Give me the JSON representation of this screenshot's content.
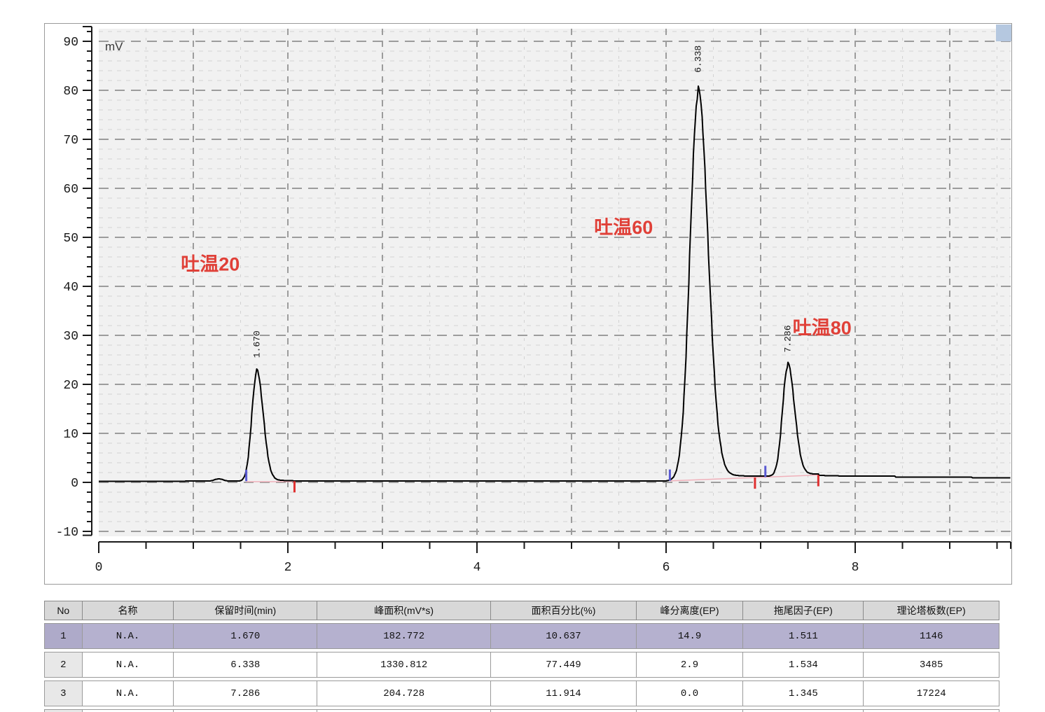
{
  "chart_data": {
    "type": "line",
    "title": "",
    "xlabel": "",
    "ylabel": "mV",
    "x_range": [
      0,
      9.64
    ],
    "y_range": [
      -11,
      92.6
    ],
    "x_tick_step_minor": 0.5,
    "x_tick_labels": [
      "0",
      "2",
      "4",
      "6",
      "8"
    ],
    "x_tick_label_values": [
      0,
      2,
      4,
      6,
      8
    ],
    "y_tick_labels": [
      "-10",
      "0",
      "10",
      "20",
      "30",
      "40",
      "50",
      "60",
      "70",
      "80",
      "90"
    ],
    "y_tick_label_values": [
      -10,
      0,
      10,
      20,
      30,
      40,
      50,
      60,
      70,
      80,
      90
    ],
    "grid": "dashed",
    "series": [
      {
        "name": "chromatogram",
        "peaks": [
          {
            "label": "1.670",
            "center": 1.67,
            "height": 22.0,
            "sigma_left": 0.052,
            "sigma_right": 0.068,
            "tail_amp": 0.9,
            "tail_tau": 0.15,
            "apex_mv": 23.2
          },
          {
            "label": "6.338",
            "center": 6.338,
            "height": 78.0,
            "sigma_left": 0.085,
            "sigma_right": 0.105,
            "tail_amp": 2.3,
            "tail_tau": 0.28,
            "apex_mv": 81.4
          },
          {
            "label": "7.286",
            "center": 7.286,
            "height": 22.2,
            "sigma_left": 0.055,
            "sigma_right": 0.072,
            "tail_amp": 1.0,
            "tail_tau": 0.18,
            "apex_mv": 24.3
          }
        ],
        "small_features": [
          {
            "center": 1.27,
            "height": 0.45,
            "sigma": 0.045
          }
        ],
        "baseline_segments": [
          {
            "from": 0.0,
            "to": 6.0,
            "v0": 0.25,
            "v1": 0.25,
            "quantize": false
          },
          {
            "from": 6.0,
            "to": 7.61,
            "v0": 0.3,
            "v1": 1.5,
            "quantize": false
          },
          {
            "from": 7.61,
            "to": 9.64,
            "v0": 1.35,
            "v1": 0.9,
            "quantize": true
          }
        ]
      }
    ],
    "integration": {
      "start_times": [
        1.56,
        6.04,
        7.05
      ],
      "end_times": [
        2.07,
        6.94,
        7.61
      ],
      "baselines": [
        {
          "t0": 1.56,
          "v0": 0.15,
          "t1": 2.07,
          "v1": 0.15
        },
        {
          "t0": 6.04,
          "v0": 0.3,
          "t1": 7.61,
          "v1": 1.5
        }
      ]
    },
    "annotations": [
      {
        "text": "吐温20",
        "t": 1.18,
        "mv": 44.5
      },
      {
        "text": "吐温60",
        "t": 5.55,
        "mv": 52.0
      },
      {
        "text": "吐温80",
        "t": 7.65,
        "mv": 31.5
      }
    ],
    "colors": {
      "trace": "#000000",
      "plot_bg": "#f1f1f1",
      "grid_minor": "#d2d2d2",
      "grid_major": "#9c9c9c",
      "axis": "#1a1a1a",
      "annotation_red": "#e04038",
      "peak_start_blue": "#5a5ad2",
      "peak_end_red": "#e03030",
      "integration_pink": "#f0b0ba",
      "unit_label_gray": "#3a3a3a",
      "corner_marker_fill": "#b5c8e0",
      "corner_marker_edge": "#4a5a6e"
    }
  },
  "table": {
    "headers": [
      "No",
      "名称",
      "保留时间(min)",
      "峰面积(mV*s)",
      "面积百分比(%)",
      "峰分离度(EP)",
      "拖尾因子(EP)",
      "理论塔板数(EP)"
    ],
    "rows": [
      [
        "1",
        "N.A.",
        "1.670",
        "182.772",
        "10.637",
        "14.9",
        "1.511",
        "1146"
      ],
      [
        "2",
        "N.A.",
        "6.338",
        "1330.812",
        "77.449",
        "2.9",
        "1.534",
        "3485"
      ],
      [
        "3",
        "N.A.",
        "7.286",
        "204.728",
        "11.914",
        "0.0",
        "1.345",
        "17224"
      ]
    ],
    "selected_row_index": 0,
    "trailing_empty_row": true,
    "selected_row_color": "#b5b1cf",
    "header_bg": "#d8d8d8"
  }
}
